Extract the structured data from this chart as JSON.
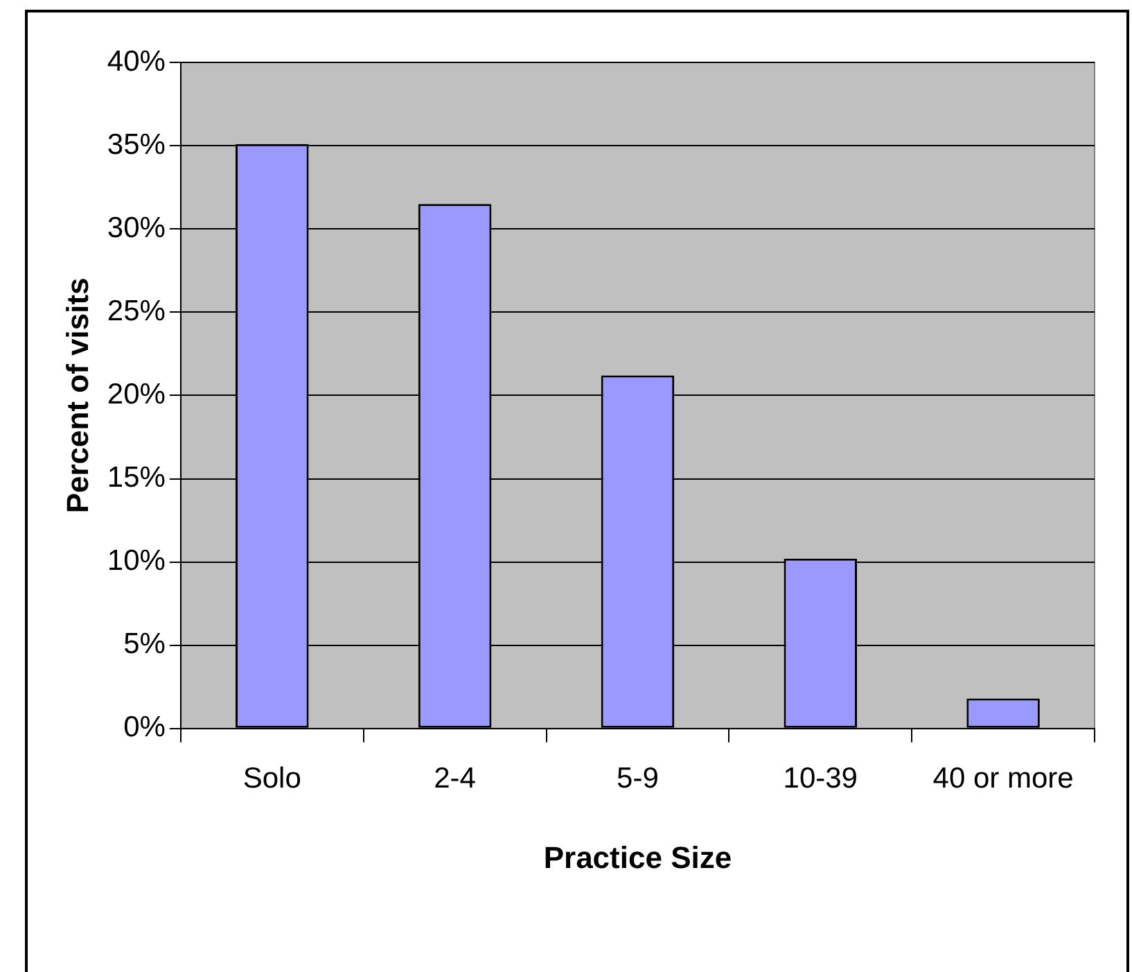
{
  "chart_data": {
    "type": "bar",
    "xlabel": "Practice Size",
    "ylabel": "Percent of visits",
    "categories": [
      "Solo",
      "2-4",
      "5-9",
      "10-39",
      "40 or more"
    ],
    "values": [
      35.1,
      31.5,
      21.2,
      10.2,
      1.8
    ],
    "color": "#9999ff",
    "ylim": [
      0,
      40
    ],
    "yticks": [
      {
        "value": 0,
        "label": "0%"
      },
      {
        "value": 5,
        "label": "5%"
      },
      {
        "value": 10,
        "label": "10%"
      },
      {
        "value": 15,
        "label": "15%"
      },
      {
        "value": 20,
        "label": "20%"
      },
      {
        "value": 25,
        "label": "25%"
      },
      {
        "value": 30,
        "label": "30%"
      },
      {
        "value": 35,
        "label": "35%"
      },
      {
        "value": 40,
        "label": "40%"
      }
    ],
    "grid": "y",
    "legend": false
  }
}
